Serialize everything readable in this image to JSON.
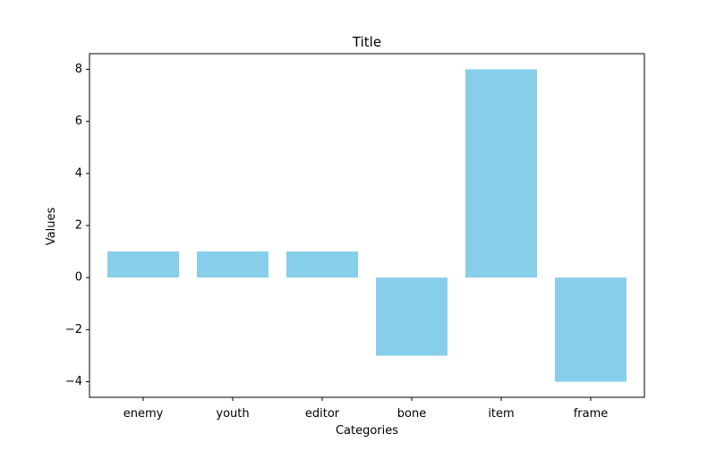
{
  "chart_data": {
    "type": "bar",
    "title": "Title",
    "xlabel": "Categories",
    "ylabel": "Values",
    "categories": [
      "enemy",
      "youth",
      "editor",
      "bone",
      "item",
      "frame"
    ],
    "values": [
      1,
      1,
      1,
      -3,
      8,
      -4
    ],
    "ylim": [
      -4.6,
      8.6
    ],
    "yticks": [
      -4,
      -2,
      0,
      2,
      4,
      6,
      8
    ],
    "ytick_labels": [
      "−4",
      "−2",
      "0",
      "2",
      "4",
      "6",
      "8"
    ],
    "grid": false,
    "bar_color": "#87ceeb"
  }
}
